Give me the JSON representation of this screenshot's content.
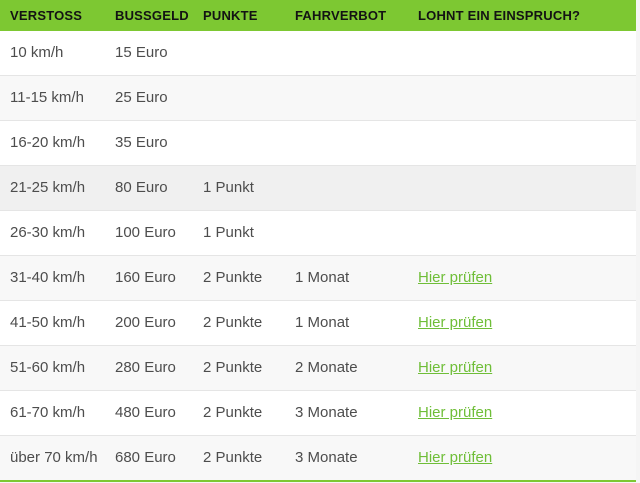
{
  "colors": {
    "header_bg": "#7dc832",
    "header_text": "#131313",
    "body_text": "#4d4d4d",
    "link_green": "#6fbe38",
    "row_separator": "#e5e5e5",
    "bottom_border_green": "#7dc832",
    "page_background": "#f5f5f5"
  },
  "table": {
    "columns": [
      {
        "key": "verstoss",
        "label": "VERSTOSS"
      },
      {
        "key": "bussgeld",
        "label": "BUSSGELD"
      },
      {
        "key": "punkte",
        "label": "PUNKTE"
      },
      {
        "key": "fahrverbot",
        "label": "FAHRVERBOT"
      },
      {
        "key": "einspruch",
        "label": "LOHNT EIN EINSPRUCH?"
      }
    ],
    "link_label": "Hier prüfen",
    "rows": [
      {
        "verstoss": "10 km/h",
        "bussgeld": "15 Euro",
        "punkte": "",
        "fahrverbot": "",
        "einspruch": ""
      },
      {
        "verstoss": "11-15 km/h",
        "bussgeld": "25 Euro",
        "punkte": "",
        "fahrverbot": "",
        "einspruch": ""
      },
      {
        "verstoss": "16-20 km/h",
        "bussgeld": "35 Euro",
        "punkte": "",
        "fahrverbot": "",
        "einspruch": ""
      },
      {
        "verstoss": "21-25 km/h",
        "bussgeld": "80 Euro",
        "punkte": "1 Punkt",
        "fahrverbot": "",
        "einspruch": ""
      },
      {
        "verstoss": "26-30 km/h",
        "bussgeld": "100 Euro",
        "punkte": "1 Punkt",
        "fahrverbot": "",
        "einspruch": ""
      },
      {
        "verstoss": "31-40 km/h",
        "bussgeld": "160 Euro",
        "punkte": "2 Punkte",
        "fahrverbot": "1 Monat",
        "einspruch": "Hier prüfen"
      },
      {
        "verstoss": "41-50 km/h",
        "bussgeld": "200 Euro",
        "punkte": "2 Punkte",
        "fahrverbot": "1 Monat",
        "einspruch": "Hier prüfen"
      },
      {
        "verstoss": "51-60 km/h",
        "bussgeld": "280 Euro",
        "punkte": "2 Punkte",
        "fahrverbot": "2 Monate",
        "einspruch": "Hier prüfen"
      },
      {
        "verstoss": "61-70 km/h",
        "bussgeld": "480 Euro",
        "punkte": "2 Punkte",
        "fahrverbot": "3 Monate",
        "einspruch": "Hier prüfen"
      },
      {
        "verstoss": "über 70 km/h",
        "bussgeld": "680 Euro",
        "punkte": "2 Punkte",
        "fahrverbot": "3 Monate",
        "einspruch": "Hier prüfen"
      }
    ]
  }
}
